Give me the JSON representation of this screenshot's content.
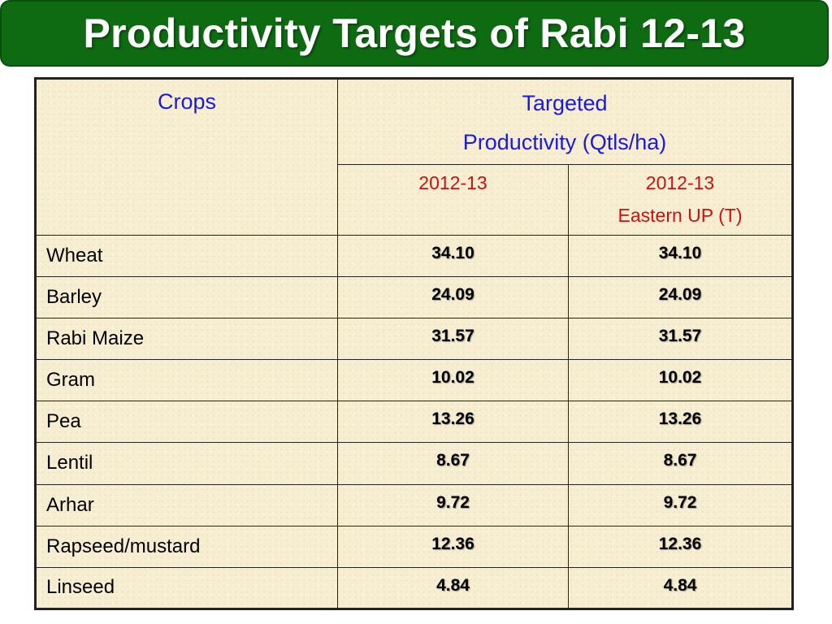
{
  "slide": {
    "title": "Productivity Targets of Rabi 12-13"
  },
  "table": {
    "header": {
      "crops_label": "Crops",
      "target_line1": "Targeted",
      "target_line2": "Productivity (Qtls/ha)",
      "col1_year": "2012-13",
      "col2_year": "2012-13",
      "col2_sub": "Eastern UP (T)"
    },
    "rows": [
      {
        "crop": "Wheat",
        "v1": "34.10",
        "v2": "34.10"
      },
      {
        "crop": "Barley",
        "v1": "24.09",
        "v2": "24.09"
      },
      {
        "crop": "Rabi Maize",
        "v1": "31.57",
        "v2": "31.57"
      },
      {
        "crop": "Gram",
        "v1": "10.02",
        "v2": "10.02"
      },
      {
        "crop": "Pea",
        "v1": "13.26",
        "v2": "13.26"
      },
      {
        "crop": "Lentil",
        "v1": "8.67",
        "v2": "8.67"
      },
      {
        "crop": "Arhar",
        "v1": "9.72",
        "v2": "9.72"
      },
      {
        "crop": "Rapseed/mustard",
        "v1": "12.36",
        "v2": "12.36"
      },
      {
        "crop": "Linseed",
        "v1": "4.84",
        "v2": "4.84"
      }
    ]
  },
  "colors": {
    "banner": "#0e6b12",
    "header_text": "#1a1adf",
    "year_text": "#cc1010",
    "table_bg": "#f7eed2"
  }
}
